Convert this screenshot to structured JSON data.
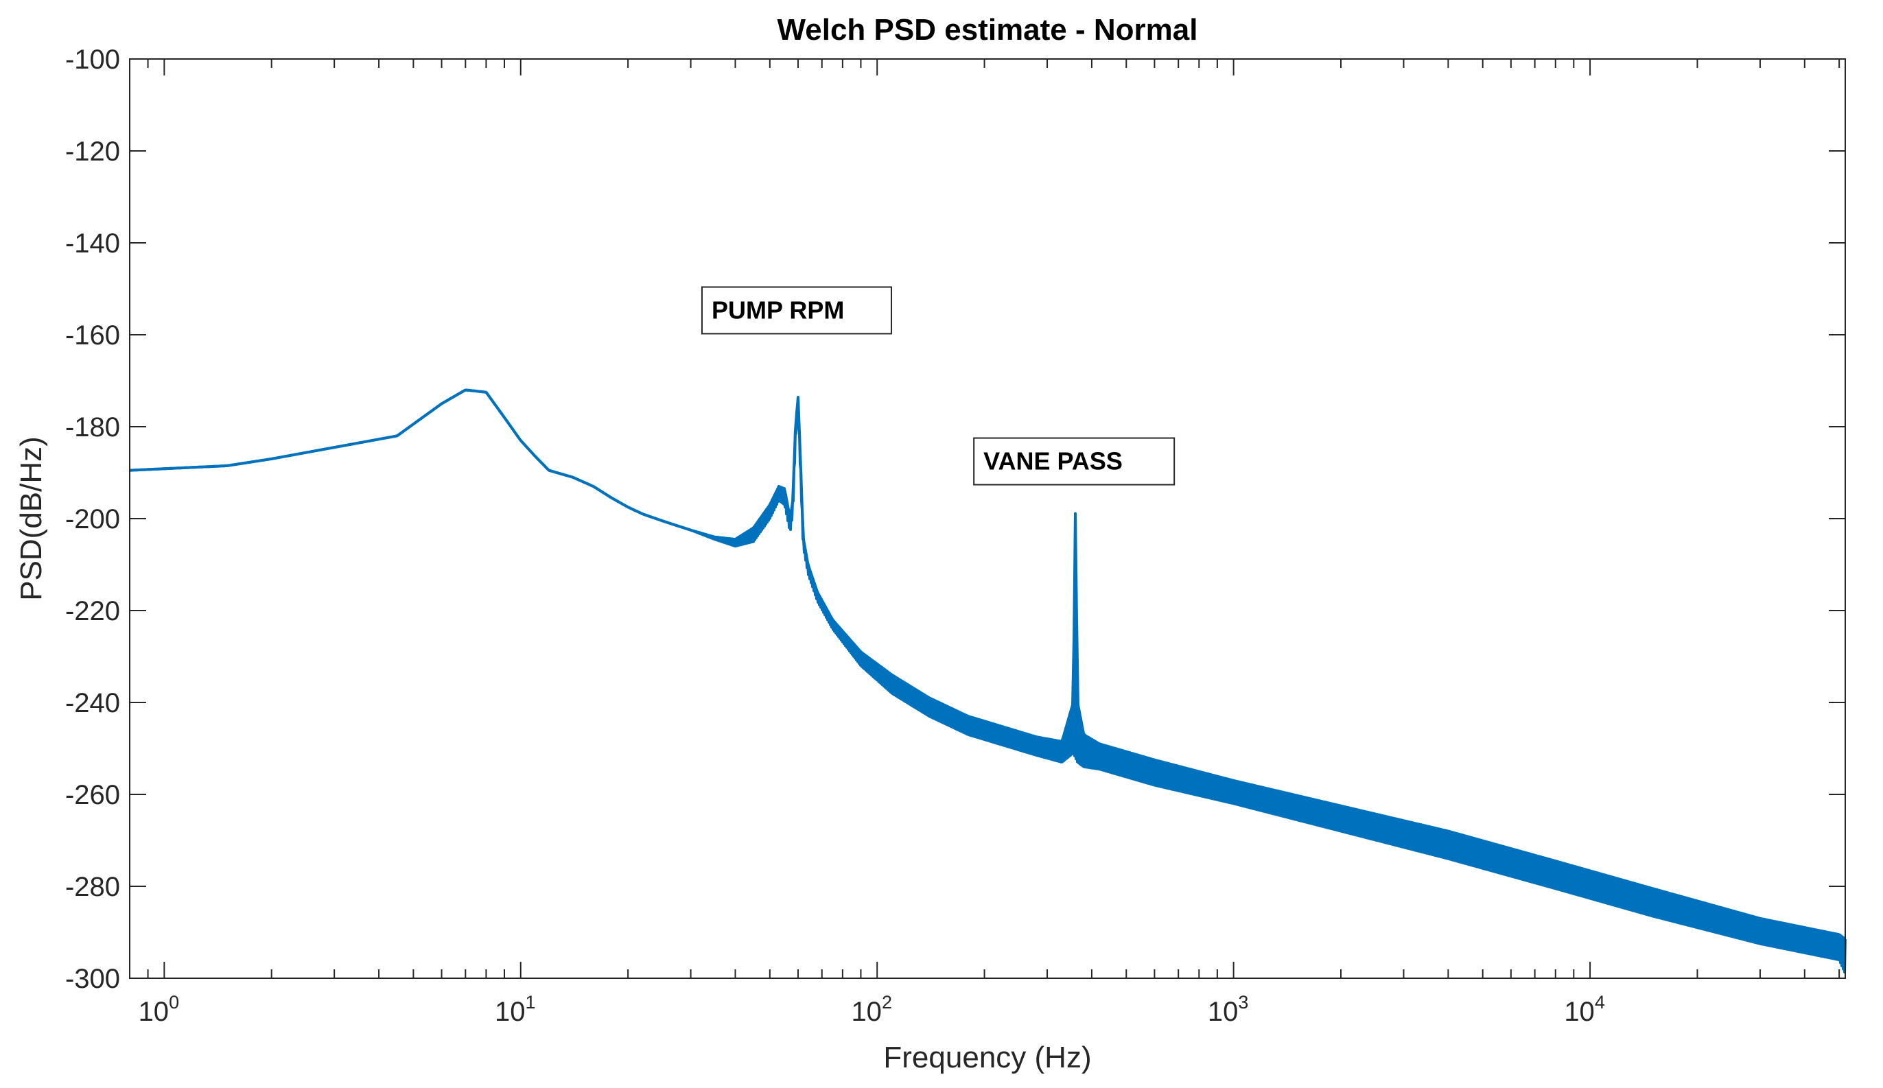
{
  "chart_data": {
    "type": "line",
    "title": "Welch PSD estimate - Normal",
    "xlabel": "Frequency (Hz)",
    "ylabel": "PSD(dB/Hz)",
    "xscale": "log",
    "xlim": [
      0.8,
      52000
    ],
    "ylim": [
      -300,
      -100
    ],
    "grid": false,
    "x_ticks": [
      {
        "base": "10",
        "exp": "0"
      },
      {
        "base": "10",
        "exp": "1"
      },
      {
        "base": "10",
        "exp": "2"
      },
      {
        "base": "10",
        "exp": "3"
      },
      {
        "base": "10",
        "exp": "4"
      }
    ],
    "x_tick_values": [
      1,
      10,
      100,
      1000,
      10000
    ],
    "y_ticks": [
      "-100",
      "-120",
      "-140",
      "-160",
      "-180",
      "-200",
      "-220",
      "-240",
      "-260",
      "-280",
      "-300"
    ],
    "y_tick_values": [
      -100,
      -120,
      -140,
      -160,
      -180,
      -200,
      -220,
      -240,
      -260,
      -280,
      -300
    ],
    "annotations": [
      {
        "text": "PUMP RPM",
        "x": 60,
        "y": -173.5
      },
      {
        "text": "VANE PASS",
        "x": 360,
        "y": -196.5
      }
    ],
    "series": [
      {
        "name": "Normal",
        "color": "#0072BD",
        "x": [
          0.8,
          1.5,
          2.0,
          3.0,
          4.5,
          6.0,
          7.0,
          8.0,
          9.0,
          10.0,
          11.0,
          12.0,
          14.0,
          16.0,
          18.0,
          20.0,
          22.0,
          25.0,
          30.0,
          35.0,
          40.0,
          45.0,
          50.0,
          53.0,
          55.0,
          57.0,
          58.0,
          59.0,
          60.0,
          61.0,
          62.0,
          64.0,
          68.0,
          75.0,
          90.0,
          110.0,
          140.0,
          180.0,
          230.0,
          280.0,
          330.0,
          355.0,
          360.0,
          365.0,
          380.0,
          420.0,
          600.0,
          1000.0,
          2000.0,
          4000.0,
          8000.0,
          15000.0,
          30000.0,
          50000.0,
          52000.0
        ],
        "y": [
          -189.5,
          -188.5,
          -187,
          -184.5,
          -182,
          -175,
          -172,
          -172.5,
          -178,
          -183,
          -186.5,
          -189.5,
          -191,
          -193,
          -195.5,
          -197.5,
          -199,
          -200.5,
          -202.5,
          -204,
          -204.5,
          -202,
          -197,
          -193,
          -193.5,
          -200,
          -196,
          -180,
          -173.5,
          -188,
          -204,
          -210,
          -216,
          -222,
          -229,
          -234,
          -239,
          -243,
          -245.5,
          -247.5,
          -248.5,
          -240,
          -196.5,
          -240,
          -247,
          -249,
          -252.5,
          -257,
          -262.5,
          -268,
          -274.5,
          -280.5,
          -287,
          -290.5,
          -291.5
        ],
        "y_low": [
          -189.5,
          -188.5,
          -187,
          -184.5,
          -182,
          -175,
          -172,
          -172.5,
          -178,
          -183,
          -186.5,
          -189.5,
          -191,
          -193,
          -195.5,
          -197.5,
          -199,
          -200.5,
          -202.5,
          -204.5,
          -206,
          -205,
          -200,
          -196,
          -197,
          -203,
          -199,
          -183,
          -176,
          -191,
          -206,
          -212,
          -218,
          -224,
          -232,
          -238,
          -243,
          -247,
          -249.5,
          -251.5,
          -253,
          -251,
          -252,
          -253,
          -254,
          -254.5,
          -258,
          -262,
          -268,
          -274,
          -280.5,
          -286.5,
          -292.5,
          -296,
          -299
        ]
      }
    ]
  }
}
